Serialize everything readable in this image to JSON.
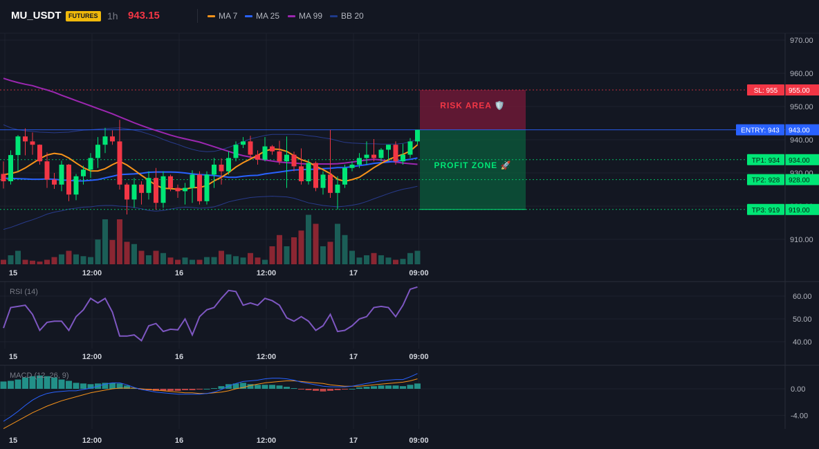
{
  "header": {
    "symbol": "MU_USDT",
    "badge": "FUTURES",
    "timeframe": "1h",
    "price": "943.15",
    "legend": [
      {
        "label": "MA 7",
        "color": "#f7931a"
      },
      {
        "label": "MA 25",
        "color": "#2962ff"
      },
      {
        "label": "MA 99",
        "color": "#9c27b0"
      },
      {
        "label": "BB 20",
        "color": "#1e3a8a"
      }
    ]
  },
  "colors": {
    "up": "#26a69a",
    "up_bright": "#00e676",
    "down": "#f23645",
    "background": "#131722",
    "grid": "#1e222d"
  },
  "time_axis": {
    "ticks": [
      {
        "label": "15",
        "index": 0
      },
      {
        "label": "12:00",
        "index": 12
      },
      {
        "label": "16",
        "index": 24
      },
      {
        "label": "12:00",
        "index": 36
      },
      {
        "label": "17",
        "index": 48
      },
      {
        "label": "09:00",
        "index": 57
      }
    ]
  },
  "chart_data": [
    {
      "type": "candlestick",
      "ylim": [
        900,
        974
      ],
      "yticks": [
        910,
        920,
        930,
        940,
        950,
        960,
        970
      ],
      "ytick_labels": [
        "910.00",
        "920.00",
        "930.00",
        "940.00",
        "950.00",
        "960.00",
        "970.00"
      ],
      "ohlc": [
        [
          929.7,
          933.5,
          925.3,
          927.5
        ],
        [
          927.5,
          936.8,
          926.5,
          935.4
        ],
        [
          935.4,
          941.4,
          930.5,
          941.0
        ],
        [
          941.0,
          943.4,
          935.3,
          939.5
        ],
        [
          939.5,
          942.2,
          935.5,
          938.5
        ],
        [
          938.5,
          938.6,
          932.5,
          933.5
        ],
        [
          933.5,
          936.2,
          925.5,
          928.0
        ],
        [
          928.0,
          930.0,
          925.2,
          926.5
        ],
        [
          926.5,
          933.7,
          924.5,
          932.5
        ],
        [
          932.5,
          932.7,
          921.5,
          923.5
        ],
        [
          923.5,
          929.7,
          921.8,
          929.0
        ],
        [
          929.0,
          932.2,
          926.5,
          931.0
        ],
        [
          931.0,
          936.0,
          928.5,
          934.5
        ],
        [
          934.5,
          940.8,
          931.5,
          938.5
        ],
        [
          938.5,
          943.6,
          936.0,
          941.0
        ],
        [
          941.0,
          942.8,
          938.5,
          939.5
        ],
        [
          939.5,
          946.0,
          925.0,
          926.5
        ],
        [
          926.5,
          927.0,
          917.5,
          922.0
        ],
        [
          922.0,
          928.5,
          919.5,
          926.5
        ],
        [
          926.5,
          927.5,
          920.5,
          924.0
        ],
        [
          924.0,
          930.5,
          922.0,
          928.5
        ],
        [
          928.5,
          931.5,
          919.0,
          921.0
        ],
        [
          921.0,
          930.5,
          919.5,
          929.0
        ],
        [
          929.0,
          929.5,
          924.5,
          925.5
        ],
        [
          925.5,
          926.5,
          922.5,
          924.5
        ],
        [
          924.5,
          927.0,
          920.5,
          925.5
        ],
        [
          925.5,
          930.8,
          921.0,
          929.5
        ],
        [
          929.5,
          930.5,
          920.5,
          921.5
        ],
        [
          921.5,
          930.5,
          920.5,
          929.5
        ],
        [
          929.5,
          934.5,
          925.5,
          932.5
        ],
        [
          932.5,
          934.4,
          926.5,
          930.5
        ],
        [
          930.5,
          936.5,
          929.5,
          934.5
        ],
        [
          934.5,
          939.5,
          933.5,
          938.5
        ],
        [
          938.5,
          940.8,
          937.5,
          939.5
        ],
        [
          939.5,
          941.2,
          934.5,
          935.5
        ],
        [
          935.5,
          936.8,
          932.5,
          934.0
        ],
        [
          934.0,
          940.8,
          933.5,
          938.0
        ],
        [
          938.0,
          938.4,
          935.5,
          936.5
        ],
        [
          936.5,
          939.7,
          932.5,
          933.5
        ],
        [
          933.5,
          941.0,
          925.5,
          935.5
        ],
        [
          935.5,
          936.4,
          930.5,
          932.0
        ],
        [
          932.0,
          937.4,
          926.5,
          927.5
        ],
        [
          927.5,
          934.0,
          926.5,
          933.0
        ],
        [
          933.0,
          933.5,
          924.5,
          925.5
        ],
        [
          925.5,
          930.5,
          923.5,
          929.5
        ],
        [
          929.5,
          943.0,
          922.5,
          924.0
        ],
        [
          924.0,
          929.0,
          919.0,
          926.5
        ],
        [
          926.5,
          932.5,
          925.5,
          931.5
        ],
        [
          931.5,
          933.5,
          930.5,
          932.5
        ],
        [
          932.5,
          936.0,
          931.5,
          934.5
        ],
        [
          934.5,
          939.5,
          932.5,
          935.5
        ],
        [
          935.5,
          940.2,
          933.5,
          934.5
        ],
        [
          934.5,
          937.5,
          933.5,
          937.0
        ],
        [
          937.0,
          938.5,
          933.5,
          938.5
        ],
        [
          938.5,
          939.5,
          932.5,
          933.5
        ],
        [
          933.5,
          938.8,
          932.5,
          935.5
        ],
        [
          935.5,
          940.5,
          934.5,
          939.5
        ],
        [
          939.5,
          943.0,
          938.5,
          943.0
        ]
      ],
      "ma7": [
        929.5,
        929.8,
        930.4,
        931.5,
        932.9,
        934.3,
        935.4,
        935.9,
        935.6,
        934.5,
        933.0,
        931.6,
        930.6,
        930.6,
        931.3,
        932.5,
        933.5,
        932.4,
        930.9,
        929.3,
        927.8,
        926.3,
        925.4,
        925.3,
        925.1,
        925.1,
        925.6,
        925.6,
        926.2,
        927.6,
        928.7,
        930.1,
        931.8,
        933.1,
        934.2,
        935.3,
        936.6,
        937.2,
        937.1,
        936.5,
        935.2,
        934.0,
        933.3,
        932.0,
        931.0,
        929.8,
        928.1,
        927.5,
        928.0,
        928.7,
        930.1,
        931.6,
        932.9,
        934.0,
        934.9,
        935.6,
        936.6,
        938.5
      ],
      "ma25": [
        928.4,
        928.4,
        928.3,
        928.2,
        928.1,
        928.1,
        928.2,
        928.1,
        927.9,
        927.8,
        927.6,
        927.6,
        927.8,
        928.0,
        928.5,
        929.0,
        929.5,
        929.6,
        929.7,
        929.9,
        930.2,
        930.3,
        930.3,
        930.3,
        930.2,
        930.0,
        929.7,
        929.5,
        929.4,
        929.2,
        929.0,
        928.7,
        928.7,
        929.0,
        929.2,
        929.3,
        929.7,
        930.0,
        930.3,
        930.6,
        930.9,
        931.0,
        931.1,
        931.1,
        931.3,
        931.4,
        931.6,
        931.6,
        931.9,
        932.2,
        932.5,
        932.9,
        933.1,
        933.3,
        933.5,
        933.8,
        934.1,
        934.5
      ],
      "ma99": [
        958.5,
        957.8,
        957.2,
        956.7,
        956.3,
        955.6,
        955.0,
        954.3,
        953.4,
        952.6,
        951.8,
        951.0,
        950.2,
        949.4,
        948.6,
        947.8,
        946.9,
        946.0,
        945.1,
        944.3,
        943.5,
        942.8,
        942.1,
        941.4,
        940.8,
        940.3,
        939.8,
        939.3,
        938.6,
        937.9,
        937.2,
        936.5,
        935.8,
        935.2,
        934.8,
        934.3,
        933.9,
        933.6,
        933.3,
        933.1,
        933.0,
        932.8,
        932.7,
        932.7,
        932.7,
        932.7,
        932.8,
        933.0,
        933.3,
        933.6,
        933.9,
        934.1,
        933.9,
        933.6,
        933.3,
        933.0,
        932.8,
        932.6
      ],
      "bb_upper": [
        944.5,
        943.6,
        943.0,
        942.7,
        942.5,
        942.3,
        942.2,
        942.1,
        942.2,
        942.3,
        942.6,
        942.9,
        943.0,
        943.2,
        943.4,
        943.5,
        943.6,
        943.3,
        942.9,
        942.4,
        941.7,
        941.0,
        940.1,
        939.3,
        938.6,
        937.8,
        937.1,
        936.6,
        936.4,
        936.5,
        937.0,
        937.7,
        938.5,
        939.4,
        940.3,
        940.8,
        941.3,
        941.6,
        941.6,
        941.6,
        941.6,
        941.5,
        941.2,
        941.0,
        940.6,
        940.3,
        939.7,
        939.2,
        939.0,
        938.9,
        938.8,
        938.8,
        938.7,
        938.7,
        938.7,
        938.9,
        939.4,
        940.1
      ],
      "bb_lower": [
        913.0,
        913.6,
        914.4,
        915.2,
        915.9,
        916.7,
        917.6,
        918.2,
        918.6,
        919.1,
        919.4,
        919.7,
        919.8,
        920.1,
        920.2,
        920.2,
        920.0,
        919.9,
        919.6,
        919.2,
        918.7,
        918.5,
        918.7,
        919.1,
        919.5,
        919.7,
        919.6,
        919.4,
        919.5,
        919.8,
        920.5,
        921.3,
        921.8,
        922.2,
        922.6,
        922.8,
        922.9,
        923.0,
        922.9,
        922.8,
        922.4,
        921.7,
        921.0,
        920.6,
        920.2,
        920.0,
        919.8,
        920.0,
        920.3,
        920.7,
        921.4,
        922.2,
        923.0,
        923.8,
        924.5,
        925.1,
        925.5,
        926.0
      ],
      "levels": [
        {
          "label": "SL: 955",
          "price_label": "955.00",
          "value": 955,
          "color": "#f23645"
        },
        {
          "label": "ENTRY: 943",
          "price_label": "943.00",
          "value": 943,
          "color": "#2962ff"
        },
        {
          "label": "TP1: 934",
          "price_label": "934.00",
          "value": 934,
          "color": "#00e676"
        },
        {
          "label": "TP2: 928",
          "price_label": "928.00",
          "value": 928,
          "color": "#00e676"
        },
        {
          "label": "TP3: 919",
          "price_label": "919.00",
          "value": 919,
          "color": "#00e676"
        }
      ],
      "risk_zone": {
        "label": "RISK AREA 🛡️",
        "from": 943,
        "to": 955
      },
      "profit_zone": {
        "label": "PROFIT ZONE 🚀",
        "from": 919,
        "to": 943
      }
    },
    {
      "type": "bar",
      "name": "volume",
      "max": 100,
      "values": [
        10,
        20,
        30,
        10,
        8,
        6,
        10,
        16,
        22,
        30,
        22,
        18,
        16,
        55,
        100,
        54,
        100,
        50,
        45,
        30,
        20,
        30,
        25,
        15,
        10,
        15,
        10,
        10,
        16,
        16,
        30,
        22,
        18,
        15,
        25,
        15,
        10,
        40,
        65,
        40,
        60,
        75,
        110,
        90,
        40,
        50,
        90,
        65,
        30,
        15,
        20,
        25,
        20,
        15,
        10,
        12,
        25,
        30
      ]
    },
    {
      "type": "line",
      "name": "RSI",
      "title": "RSI (14)",
      "ylim": [
        36,
        66
      ],
      "yticks": [
        40,
        50,
        60
      ],
      "ytick_labels": [
        "40.00",
        "50.00",
        "60.00"
      ],
      "values": [
        46,
        55,
        55.5,
        56,
        52,
        45,
        48.5,
        49,
        49,
        45,
        51,
        54,
        59,
        57,
        59,
        53,
        42.5,
        42.5,
        43,
        40.5,
        47,
        48,
        44.5,
        45.5,
        45.2,
        50,
        43,
        51,
        54,
        55,
        59,
        62.5,
        62,
        56,
        57,
        56,
        59,
        58,
        56,
        50.5,
        49,
        51,
        49,
        45,
        47,
        52,
        44.5,
        45,
        47,
        50,
        51,
        55,
        55.5,
        55,
        51,
        56,
        63,
        64
      ]
    },
    {
      "type": "line",
      "name": "MACD",
      "title": "MACD (12, 26, 9)",
      "ylim": [
        -6.5,
        3.5
      ],
      "yticks": [
        0,
        -4
      ],
      "ytick_labels": [
        "0.00",
        "-4.00"
      ],
      "macd": [
        -4.9,
        -4.2,
        -3.4,
        -2.5,
        -1.7,
        -1.1,
        -0.7,
        -0.5,
        -0.4,
        -0.3,
        -0.3,
        -0.1,
        0.1,
        0.4,
        0.7,
        0.9,
        0.9,
        0.6,
        0.2,
        -0.1,
        -0.3,
        -0.5,
        -0.6,
        -0.7,
        -0.8,
        -0.8,
        -0.8,
        -0.8,
        -0.7,
        -0.5,
        -0.1,
        0.4,
        0.8,
        1.1,
        1.2,
        1.3,
        1.5,
        1.6,
        1.6,
        1.5,
        1.3,
        1.0,
        0.8,
        0.6,
        0.4,
        0.3,
        0.3,
        0.3,
        0.4,
        0.6,
        0.8,
        1.0,
        1.2,
        1.3,
        1.4,
        1.4,
        1.8,
        2.3
      ],
      "signal": [
        -6.0,
        -5.4,
        -4.8,
        -4.2,
        -3.6,
        -3.1,
        -2.6,
        -2.2,
        -1.8,
        -1.5,
        -1.2,
        -0.9,
        -0.6,
        -0.4,
        -0.2,
        0.0,
        0.1,
        0.1,
        0.1,
        0.0,
        -0.1,
        -0.2,
        -0.3,
        -0.4,
        -0.5,
        -0.6,
        -0.6,
        -0.7,
        -0.7,
        -0.6,
        -0.5,
        -0.3,
        0.0,
        0.2,
        0.5,
        0.7,
        0.9,
        1.0,
        1.1,
        1.2,
        1.2,
        1.1,
        1.0,
        0.9,
        0.8,
        0.6,
        0.5,
        0.4,
        0.4,
        0.4,
        0.5,
        0.6,
        0.7,
        0.8,
        0.9,
        1.0,
        1.2,
        1.5
      ],
      "histogram": [
        1.1,
        1.2,
        1.4,
        1.7,
        1.9,
        2.0,
        1.9,
        1.7,
        1.4,
        1.2,
        0.9,
        0.8,
        0.7,
        0.8,
        0.9,
        0.9,
        0.8,
        0.5,
        0.1,
        -0.1,
        -0.2,
        -0.3,
        -0.3,
        -0.3,
        -0.3,
        -0.2,
        -0.2,
        -0.1,
        0.0,
        0.1,
        0.4,
        0.7,
        0.8,
        0.9,
        0.7,
        0.6,
        0.6,
        0.6,
        0.5,
        0.3,
        0.1,
        -0.1,
        -0.2,
        -0.3,
        -0.4,
        -0.3,
        -0.2,
        -0.1,
        0.0,
        0.2,
        0.3,
        0.4,
        0.5,
        0.5,
        0.5,
        0.4,
        0.6,
        0.8
      ]
    }
  ]
}
